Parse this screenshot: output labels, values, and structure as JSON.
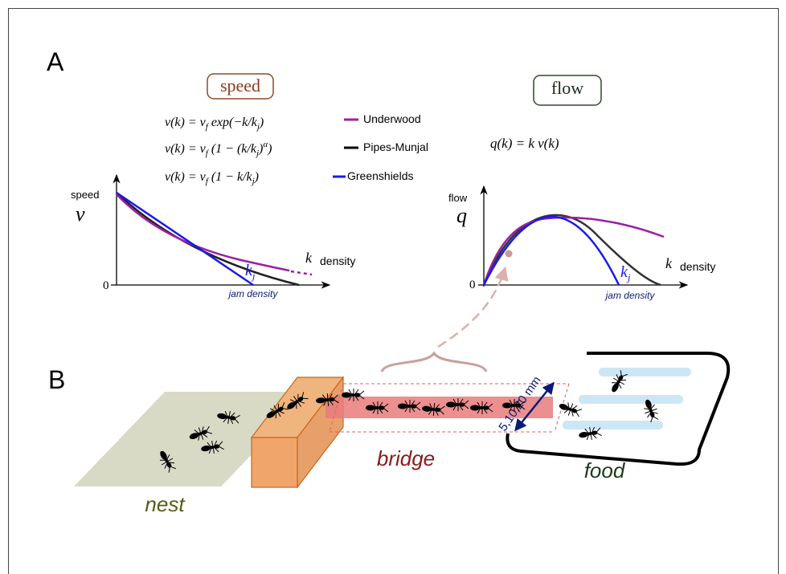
{
  "panel_a": {
    "label": "A",
    "speed_box": "speed",
    "flow_box": "flow",
    "equations": [
      [
        "v(k) = v",
        "f",
        " exp(−k/k",
        "j",
        ")"
      ],
      [
        "v(k) = v",
        "f",
        " (1 − (k/k",
        "j",
        ")",
        "α",
        ")"
      ],
      [
        "v(k) = v",
        "f",
        " (1 − k/k",
        "j",
        ")"
      ]
    ],
    "legend": [
      "Underwood",
      "Pipes-Munjal",
      "Greenshields"
    ],
    "flow_equation": "q(k) = k v(k)",
    "speed_plot": {
      "y_label": "speed",
      "y_symbol": "v",
      "zero": "0",
      "kj": [
        "k",
        "j"
      ],
      "x_symbol": "k",
      "x_label": "density",
      "jam": "jam density"
    },
    "flow_plot": {
      "y_label": "flow",
      "y_symbol": "q",
      "zero": "0",
      "kj": [
        "k",
        "j"
      ],
      "x_symbol": "k",
      "x_label": "density",
      "jam": "jam density"
    }
  },
  "panel_b": {
    "label": "B",
    "nest": "nest",
    "bridge": "bridge",
    "food": "food",
    "width": "5,10,20 mm"
  }
}
